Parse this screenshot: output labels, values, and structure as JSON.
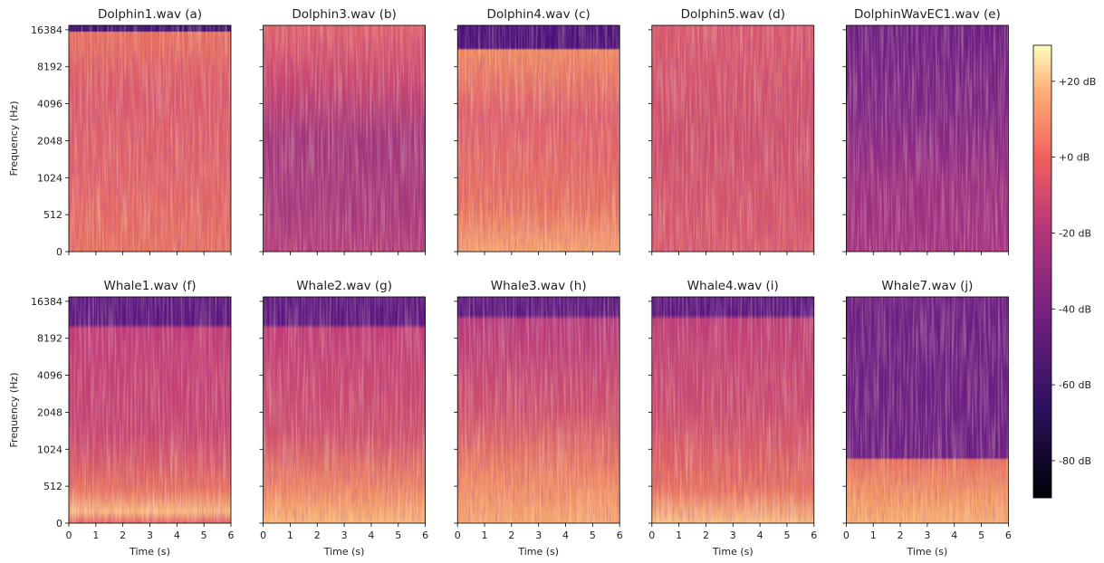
{
  "chart_data": [
    {
      "type": "spectrogram",
      "title": "Dolphin1.wav (a)",
      "ylabel": "Frequency (Hz)",
      "xlim": [
        0,
        6
      ],
      "xticks": [
        0,
        1,
        2,
        3,
        4,
        5,
        6
      ],
      "ylim": [
        0,
        17800
      ],
      "yscale": "symlog",
      "linthresh": 512,
      "yticks": [
        0,
        512,
        1024,
        2048,
        4096,
        8192,
        16384
      ]
    },
    {
      "type": "spectrogram",
      "title": "Dolphin3.wav (b)",
      "xlim": [
        0,
        6
      ],
      "xticks": [
        0,
        1,
        2,
        3,
        4,
        5,
        6
      ],
      "ylim": [
        0,
        17800
      ],
      "yscale": "symlog",
      "linthresh": 512,
      "yticks": [
        0,
        512,
        1024,
        2048,
        4096,
        8192,
        16384
      ]
    },
    {
      "type": "spectrogram",
      "title": "Dolphin4.wav (c)",
      "xlim": [
        0,
        6
      ],
      "xticks": [
        0,
        1,
        2,
        3,
        4,
        5,
        6
      ],
      "ylim": [
        0,
        17800
      ],
      "yscale": "symlog",
      "linthresh": 512,
      "yticks": [
        0,
        512,
        1024,
        2048,
        4096,
        8192,
        16384
      ]
    },
    {
      "type": "spectrogram",
      "title": "Dolphin5.wav (d)",
      "xlim": [
        0,
        6
      ],
      "xticks": [
        0,
        1,
        2,
        3,
        4,
        5,
        6
      ],
      "ylim": [
        0,
        17800
      ],
      "yscale": "symlog",
      "linthresh": 512,
      "yticks": [
        0,
        512,
        1024,
        2048,
        4096,
        8192,
        16384
      ]
    },
    {
      "type": "spectrogram",
      "title": "DolphinWavEC1.wav (e)",
      "xlim": [
        0,
        6
      ],
      "xticks": [
        0,
        1,
        2,
        3,
        4,
        5,
        6
      ],
      "ylim": [
        0,
        17800
      ],
      "yscale": "symlog",
      "linthresh": 512,
      "yticks": [
        0,
        512,
        1024,
        2048,
        4096,
        8192,
        16384
      ]
    },
    {
      "type": "spectrogram",
      "title": "Whale1.wav (f)",
      "xlabel": "Time (s)",
      "ylabel": "Frequency (Hz)",
      "xlim": [
        0,
        6
      ],
      "xticks": [
        0,
        1,
        2,
        3,
        4,
        5,
        6
      ],
      "ylim": [
        0,
        17800
      ],
      "yscale": "symlog",
      "linthresh": 512,
      "yticks": [
        0,
        512,
        1024,
        2048,
        4096,
        8192,
        16384
      ]
    },
    {
      "type": "spectrogram",
      "title": "Whale2.wav (g)",
      "xlabel": "Time (s)",
      "xlim": [
        0,
        6
      ],
      "xticks": [
        0,
        1,
        2,
        3,
        4,
        5,
        6
      ],
      "ylim": [
        0,
        17800
      ],
      "yscale": "symlog",
      "linthresh": 512,
      "yticks": [
        0,
        512,
        1024,
        2048,
        4096,
        8192,
        16384
      ]
    },
    {
      "type": "spectrogram",
      "title": "Whale3.wav (h)",
      "xlabel": "Time (s)",
      "xlim": [
        0,
        6
      ],
      "xticks": [
        0,
        1,
        2,
        3,
        4,
        5,
        6
      ],
      "ylim": [
        0,
        17800
      ],
      "yscale": "symlog",
      "linthresh": 512,
      "yticks": [
        0,
        512,
        1024,
        2048,
        4096,
        8192,
        16384
      ]
    },
    {
      "type": "spectrogram",
      "title": "Whale4.wav (i)",
      "xlabel": "Time (s)",
      "xlim": [
        0,
        6
      ],
      "xticks": [
        0,
        1,
        2,
        3,
        4,
        5,
        6
      ],
      "ylim": [
        0,
        17800
      ],
      "yscale": "symlog",
      "linthresh": 512,
      "yticks": [
        0,
        512,
        1024,
        2048,
        4096,
        8192,
        16384
      ]
    },
    {
      "type": "spectrogram",
      "title": "Whale7.wav (j)",
      "xlabel": "Time (s)",
      "xlim": [
        0,
        6
      ],
      "xticks": [
        0,
        1,
        2,
        3,
        4,
        5,
        6
      ],
      "ylim": [
        0,
        17800
      ],
      "yscale": "symlog",
      "linthresh": 512,
      "yticks": [
        0,
        512,
        1024,
        2048,
        4096,
        8192,
        16384
      ]
    },
    {
      "type": "colorbar",
      "ylim": [
        -89.8,
        29.5
      ],
      "yticks": [
        {
          "value": 20,
          "label": "+20 dB"
        },
        {
          "value": 0,
          "label": "+0 dB"
        },
        {
          "value": -20,
          "label": "-20 dB"
        },
        {
          "value": -40,
          "label": "-40 dB"
        },
        {
          "value": -60,
          "label": "-60 dB"
        },
        {
          "value": -80,
          "label": "-80 dB"
        }
      ]
    }
  ]
}
